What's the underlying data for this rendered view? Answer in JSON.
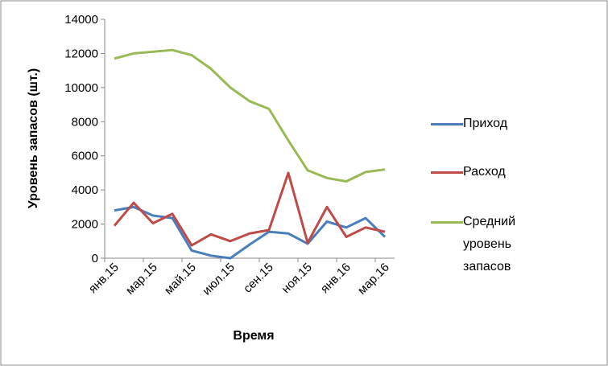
{
  "chart_data": {
    "type": "line",
    "xlabel": "Время",
    "ylabel": "Уровень запасов (шт.)",
    "categories": [
      "янв.15",
      null,
      "мар.15",
      null,
      "май.15",
      null,
      "июл.15",
      null,
      "сен.15",
      null,
      "ноя.15",
      null,
      "янв.16",
      null,
      "мар.16"
    ],
    "series": [
      {
        "name": "Приход",
        "color": "#4a7ebb",
        "values": [
          2800,
          3000,
          2500,
          2350,
          450,
          150,
          0,
          800,
          1550,
          1450,
          850,
          2150,
          1800,
          2350,
          1250
        ]
      },
      {
        "name": "Расход",
        "color": "#be4b48",
        "values": [
          1900,
          3250,
          2050,
          2600,
          750,
          1400,
          1000,
          1450,
          1650,
          5000,
          900,
          3000,
          1250,
          1800,
          1550
        ]
      },
      {
        "name": "Средний уровень запасов",
        "color": "#98b954",
        "values": [
          11700,
          12000,
          12100,
          12200,
          11900,
          11100,
          10000,
          9200,
          8750,
          6900,
          5150,
          4700,
          4500,
          5050,
          5200
        ]
      }
    ],
    "ylim": [
      0,
      14000
    ],
    "yticks": [
      0,
      2000,
      4000,
      6000,
      8000,
      10000,
      12000,
      14000
    ],
    "grid": false,
    "legend": "right"
  }
}
